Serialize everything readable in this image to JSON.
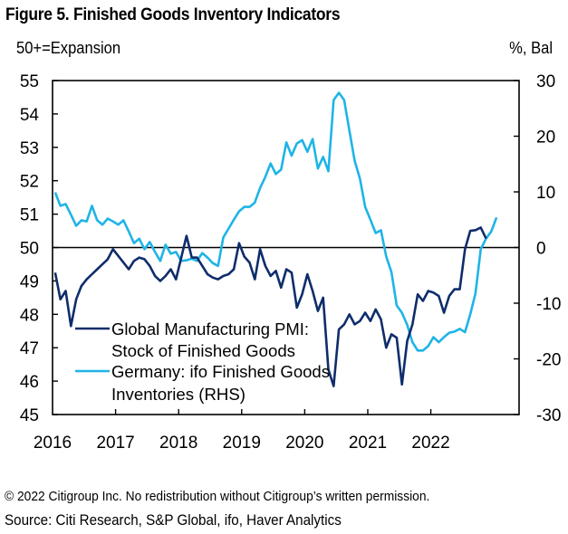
{
  "chart_data": {
    "type": "line",
    "title": "Figure 5. Finished Goods Inventory Indicators",
    "ylabel_left": "50+=Expansion",
    "ylabel_right": "%, Bal",
    "xlabel": "",
    "x_start": "2016-01",
    "x_frequency": "monthly",
    "xlim": [
      2016.0,
      2023.4
    ],
    "ylim_left": [
      45,
      55
    ],
    "ylim_right": [
      -30,
      30
    ],
    "x_ticks": [
      "2016",
      "2017",
      "2018",
      "2019",
      "2020",
      "2021",
      "2022"
    ],
    "y_ticks_left": [
      "55",
      "54",
      "53",
      "52",
      "51",
      "50",
      "49",
      "48",
      "47",
      "46",
      "45"
    ],
    "y_ticks_right": [
      "30",
      "20",
      "10",
      "0",
      "-10",
      "-20",
      "-30"
    ],
    "reference_line": {
      "axis": "left",
      "value": 50
    },
    "legend_placement": "bottom-left",
    "series": [
      {
        "name": "Global Manufacturing PMI: Stock of Finished Goods",
        "legend_lines": [
          "Global Manufacturing PMI:",
          "Stock of Finished Goods"
        ],
        "axis": "left",
        "color": "#0f2d6b",
        "values": [
          49.25,
          48.45,
          48.7,
          47.65,
          48.45,
          48.85,
          49.05,
          49.2,
          49.35,
          49.5,
          49.65,
          49.95,
          49.75,
          49.55,
          49.35,
          49.6,
          49.7,
          49.65,
          49.45,
          49.15,
          49.0,
          49.15,
          49.35,
          49.05,
          49.7,
          50.35,
          49.7,
          49.7,
          49.45,
          49.2,
          49.1,
          49.05,
          49.15,
          49.2,
          49.35,
          50.13,
          49.73,
          49.55,
          49.05,
          49.95,
          49.45,
          49.15,
          49.3,
          48.8,
          49.35,
          49.25,
          48.2,
          48.6,
          49.2,
          48.7,
          48.1,
          48.5,
          46.35,
          45.85,
          47.55,
          47.7,
          48.0,
          47.7,
          47.8,
          48.05,
          47.8,
          48.15,
          47.85,
          47.0,
          47.4,
          47.3,
          45.9,
          47.2,
          47.7,
          48.6,
          48.4,
          48.7,
          48.65,
          48.55,
          48.05,
          48.55,
          48.75,
          48.75,
          49.95,
          50.5,
          50.52,
          50.6,
          50.27
        ]
      },
      {
        "name": "Germany: ifo Finished Goods Inventories (RHS)",
        "legend_lines": [
          "Germany: ifo Finished Goods",
          "Inventories (RHS)"
        ],
        "axis": "right",
        "color": "#1fb4e6",
        "values": [
          9.9,
          7.5,
          7.8,
          5.9,
          3.9,
          4.9,
          4.7,
          7.5,
          4.9,
          4.1,
          5.2,
          4.7,
          4.1,
          4.9,
          2.9,
          0.8,
          1.6,
          -0.3,
          1.0,
          -0.8,
          -2.4,
          0.5,
          -1.1,
          -0.8,
          -2.4,
          -2.3,
          -2.0,
          -2.4,
          -1.0,
          -1.8,
          -2.8,
          -3.3,
          1.8,
          3.4,
          5.0,
          6.5,
          7.3,
          7.3,
          8.1,
          10.7,
          12.7,
          15.1,
          13.2,
          14.0,
          18.9,
          16.5,
          18.7,
          19.3,
          17.2,
          19.5,
          14.2,
          16.3,
          13.7,
          26.5,
          27.8,
          26.5,
          21.0,
          15.6,
          12.4,
          7.3,
          5.0,
          2.6,
          3.1,
          -1.6,
          -4.4,
          -10.4,
          -11.7,
          -13.9,
          -17.0,
          -18.5,
          -18.5,
          -17.7,
          -16.1,
          -17.0,
          -16.1,
          -15.3,
          -15.1,
          -14.6,
          -15.2,
          -12.0,
          -8.2,
          -0.3,
          1.6,
          2.9,
          5.4
        ]
      }
    ]
  },
  "footer": {
    "copyright": "© 2022 Citigroup Inc. No redistribution without Citigroup’s written permission.",
    "source": "Source: Citi Research, S&P Global, ifo, Haver Analytics"
  }
}
